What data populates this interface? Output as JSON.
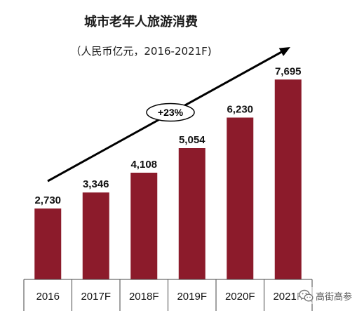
{
  "chart_data": {
    "type": "bar",
    "title": "城市老年人旅游消费",
    "subtitle": "（人民币亿元，2016-2021F)",
    "categories": [
      "2016",
      "2017F",
      "2018F",
      "2019F",
      "2020F",
      "2021F"
    ],
    "values": [
      2730,
      3346,
      4108,
      5054,
      6230,
      7695
    ],
    "value_labels": [
      "2,730",
      "3,346",
      "4,108",
      "5,054",
      "6,230",
      "7,695"
    ],
    "trend_label": "+23%",
    "grid": false,
    "bar_color": "#8c1b2b"
  },
  "watermark": {
    "icon": "wechat-icon",
    "text": "高街高参"
  }
}
